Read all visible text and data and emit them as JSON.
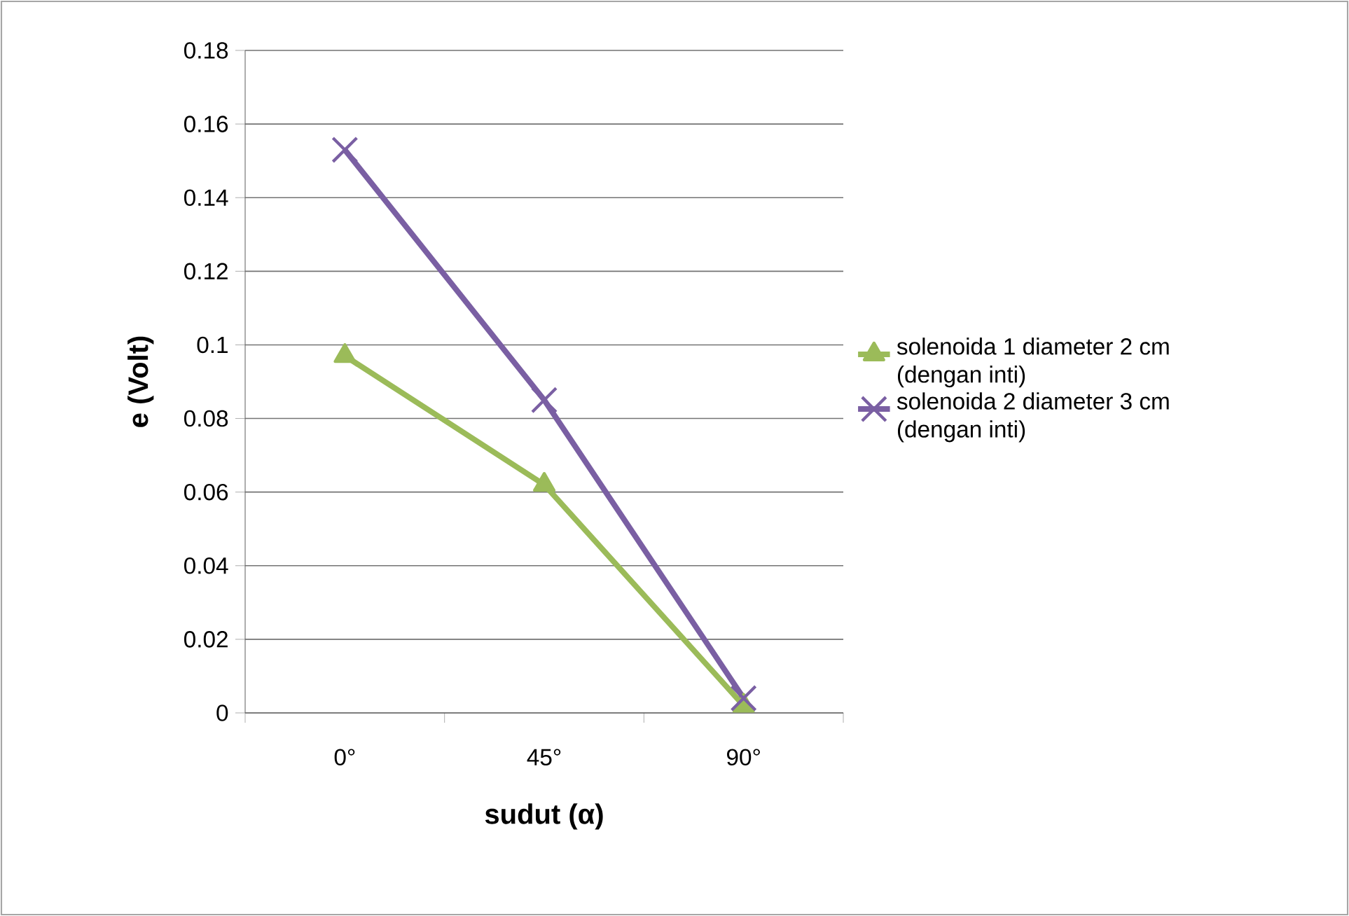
{
  "chart_data": {
    "type": "line",
    "xlabel": "sudut (α)",
    "ylabel": "e (Volt)",
    "categories": [
      "0°",
      "45°",
      "90°"
    ],
    "series": [
      {
        "name": "solenoida 1 diameter 2 cm (dengan inti)",
        "color": "#9bbb59",
        "marker": "triangle",
        "values": [
          0.097,
          0.062,
          0.002
        ]
      },
      {
        "name": "solenoida 2 diameter 3 cm (dengan inti)",
        "color": "#7a5fa3",
        "marker": "cross",
        "values": [
          0.153,
          0.085,
          0.004
        ]
      }
    ],
    "ylim": [
      0,
      0.18
    ],
    "yticks": [
      0,
      0.02,
      0.04,
      0.06,
      0.08,
      0.1,
      0.12,
      0.14,
      0.16,
      0.18
    ],
    "grid": "y",
    "legend": "right",
    "line_style": "solid"
  }
}
